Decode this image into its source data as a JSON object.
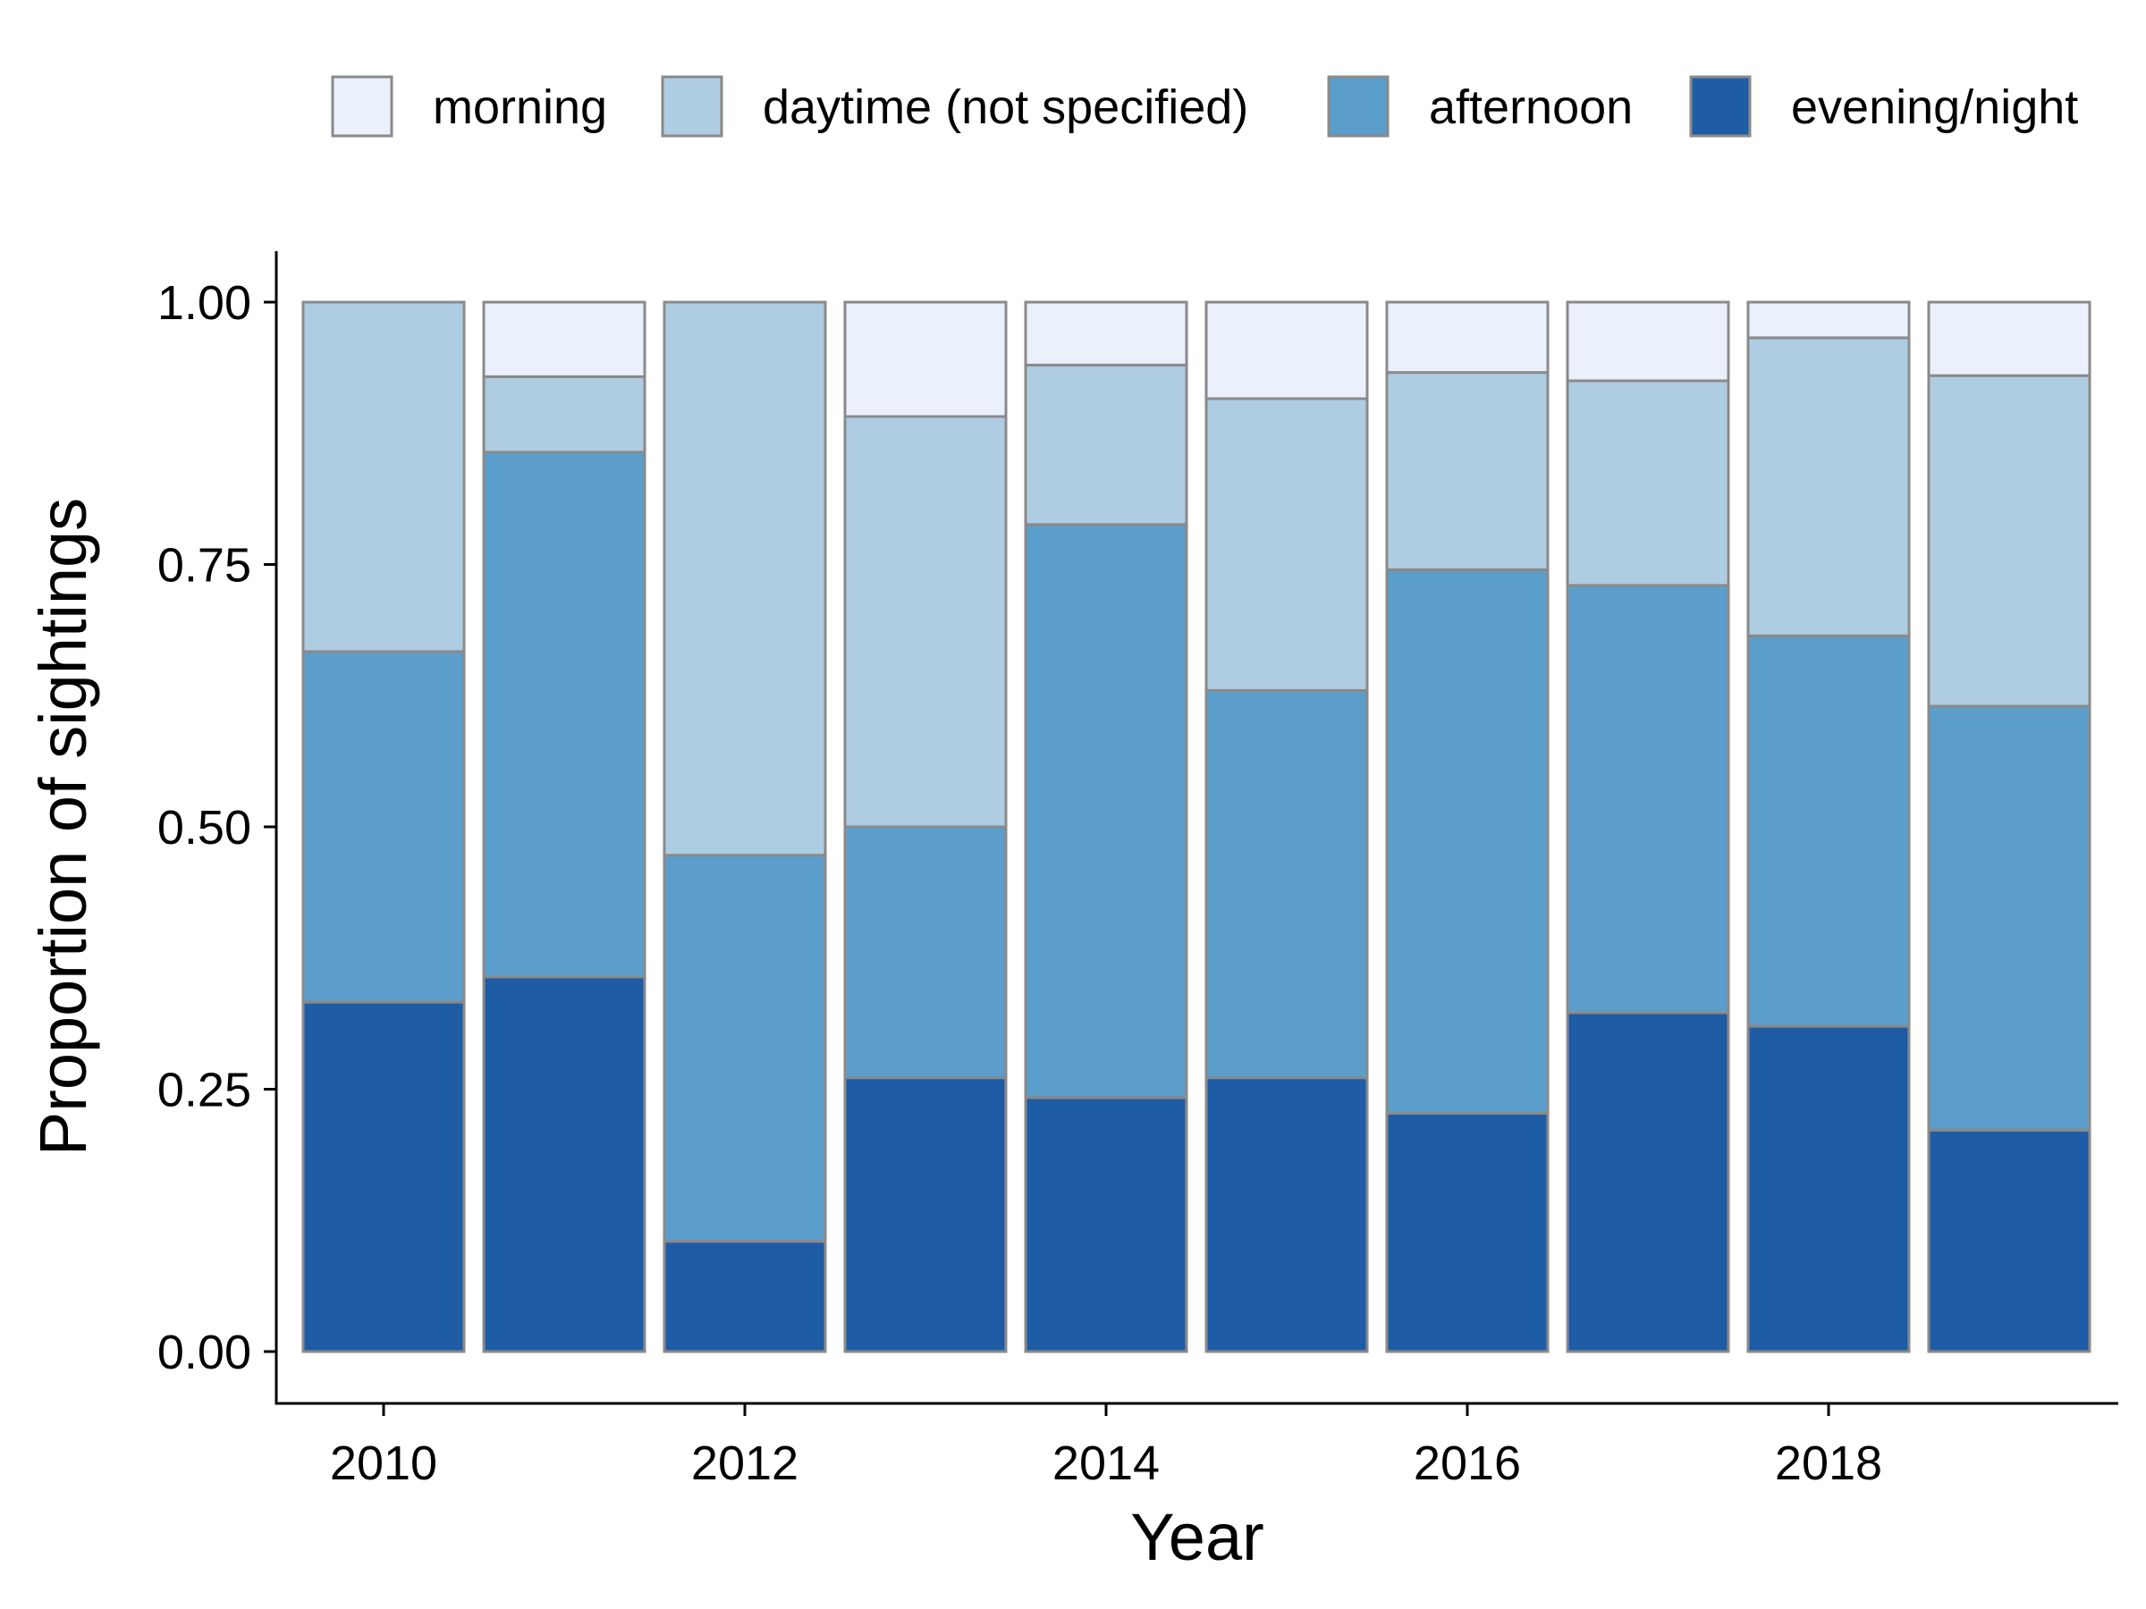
{
  "chart_data": {
    "type": "bar",
    "stacked": true,
    "title": "",
    "xlabel": "Year",
    "ylabel": "Proportion of sightings",
    "ylim": [
      0,
      1
    ],
    "categories": [
      2010,
      2011,
      2012,
      2013,
      2014,
      2015,
      2016,
      2017,
      2018,
      2019
    ],
    "x_tick_labels": [
      "2010",
      "2012",
      "2014",
      "2016",
      "2018"
    ],
    "y_tick_labels": [
      "0.00",
      "0.25",
      "0.50",
      "0.75",
      "1.00"
    ],
    "y_ticks": [
      0,
      0.25,
      0.5,
      0.75,
      1
    ],
    "legend_position": "top",
    "grid": false,
    "series": [
      {
        "name": "evening/night",
        "color": "#1f5ca6",
        "values": [
          0.333,
          0.357,
          0.105,
          0.261,
          0.242,
          0.261,
          0.227,
          0.323,
          0.31,
          0.211
        ]
      },
      {
        "name": "afternoon",
        "color": "#5b9ecb",
        "values": [
          0.334,
          0.5,
          0.368,
          0.239,
          0.546,
          0.369,
          0.518,
          0.407,
          0.372,
          0.404
        ]
      },
      {
        "name": "daytime (not specified)",
        "color": "#afcde2",
        "values": [
          0.333,
          0.072,
          0.527,
          0.391,
          0.152,
          0.278,
          0.188,
          0.195,
          0.284,
          0.315
        ]
      },
      {
        "name": "morning",
        "color": "#eaf0fc",
        "values": [
          0.0,
          0.071,
          0.0,
          0.109,
          0.06,
          0.092,
          0.067,
          0.075,
          0.034,
          0.07
        ]
      }
    ],
    "legend_order": [
      "morning",
      "daytime (not specified)",
      "afternoon",
      "evening/night"
    ],
    "bar_outline_color": "#8a8a8a"
  }
}
